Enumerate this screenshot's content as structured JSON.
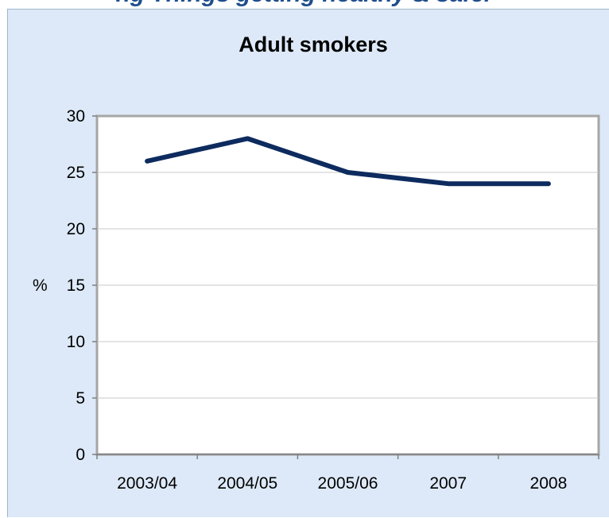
{
  "header": {
    "caption_fragment": "ng Things getting healthy & safer"
  },
  "chart_data": {
    "type": "line",
    "title": "Adult smokers",
    "xlabel": "",
    "ylabel": "%",
    "categories": [
      "2003/04",
      "2004/05",
      "2005/06",
      "2007",
      "2008"
    ],
    "series": [
      {
        "values": [
          26,
          28,
          25,
          24,
          24
        ],
        "color": "#0d2b5e"
      }
    ],
    "ylim": [
      0,
      30
    ],
    "yticks": [
      0,
      5,
      10,
      15,
      20,
      25,
      30
    ],
    "grid": true,
    "legend": "none",
    "colors": {
      "frame_background": "#dde9f8",
      "plot_background": "#ffffff",
      "plot_border": "#a6a6a6",
      "gridline": "#c8c8c8",
      "line": "#0d2b5e"
    }
  }
}
